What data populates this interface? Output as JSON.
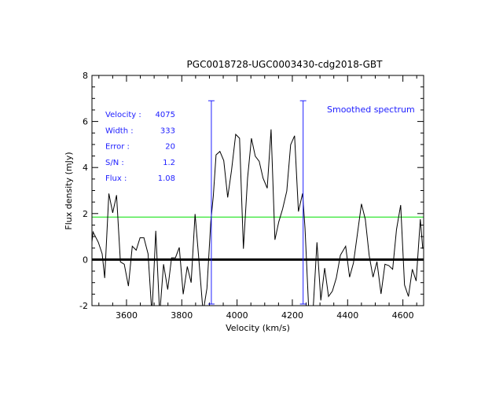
{
  "chart_data": {
    "type": "line",
    "title": "PGC0018728-UGC0003430-cdg2018-GBT",
    "xlabel": "Velocity (km/s)",
    "ylabel": "Flux density (mJy)",
    "xlim": [
      3475,
      4675
    ],
    "ylim": [
      -2,
      8
    ],
    "xticks": [
      3600,
      3800,
      4000,
      4200,
      4400,
      4600
    ],
    "yticks": [
      -2,
      0,
      2,
      4,
      6,
      8
    ],
    "grid": false,
    "legend": "top-right",
    "legend_text": "Smoothed spectrum",
    "series": [
      {
        "name": "Smoothed spectrum",
        "color": "#000000",
        "x": [
          3474,
          3479,
          3498,
          3512,
          3521,
          3536,
          3550,
          3564,
          3578,
          3592,
          3607,
          3621,
          3635,
          3649,
          3663,
          3678,
          3692,
          3706,
          3720,
          3734,
          3749,
          3763,
          3777,
          3791,
          3805,
          3820,
          3834,
          3848,
          3862,
          3877,
          3891,
          3905,
          3914,
          3924,
          3938,
          3952,
          3966,
          3980,
          3995,
          4009,
          4023,
          4038,
          4052,
          4066,
          4080,
          4094,
          4109,
          4123,
          4137,
          4151,
          4165,
          4180,
          4194,
          4208,
          4222,
          4237,
          4246,
          4260,
          4274,
          4289,
          4303,
          4317,
          4331,
          4345,
          4359,
          4374,
          4393,
          4407,
          4421,
          4435,
          4450,
          4464,
          4478,
          4492,
          4506,
          4521,
          4535,
          4549,
          4563,
          4577,
          4592,
          4606,
          4620,
          4634,
          4648,
          4663,
          4672
        ],
        "y": [
          0.64,
          1.2,
          0.75,
          0.25,
          -0.8,
          2.87,
          2.03,
          2.8,
          -0.1,
          -0.2,
          -1.15,
          0.58,
          0.41,
          0.95,
          0.95,
          0.25,
          -2.4,
          1.25,
          -2.4,
          -0.2,
          -1.3,
          0.08,
          0.08,
          0.53,
          -1.5,
          -0.3,
          -1.0,
          1.98,
          -0.03,
          -2.3,
          -1.25,
          1.64,
          2.76,
          4.55,
          4.7,
          4.3,
          2.7,
          3.88,
          5.44,
          5.27,
          0.47,
          3.54,
          5.27,
          4.49,
          4.27,
          3.54,
          3.1,
          5.66,
          0.86,
          1.64,
          2.2,
          2.98,
          4.99,
          5.38,
          2.09,
          2.87,
          1.36,
          -2.4,
          -2.4,
          0.75,
          -1.77,
          -0.37,
          -1.6,
          -1.37,
          -0.8,
          0.19,
          0.58,
          -0.76,
          -0.15,
          1.08,
          2.42,
          1.75,
          0.19,
          -0.76,
          -0.09,
          -1.49,
          -0.2,
          -0.26,
          -0.42,
          1.31,
          2.37,
          -1.1,
          -1.6,
          -0.42,
          -0.93,
          1.75,
          0.47
        ]
      }
    ],
    "reference_lines": {
      "zero": {
        "y": 0,
        "color": "#000000"
      },
      "noise_level": {
        "y": 1.85,
        "color": "#00e000"
      }
    },
    "markers": {
      "color": "#2020ff",
      "x": [
        3907,
        4239
      ],
      "y_range": [
        -1.93,
        6.9
      ]
    },
    "annotations": {
      "color": "#2020ff",
      "rows": [
        {
          "label": "Velocity :",
          "value": "4075"
        },
        {
          "label": "Width :",
          "value": "333"
        },
        {
          "label": "Error :",
          "value": "20"
        },
        {
          "label": "S/N :",
          "value": "1.2"
        },
        {
          "label": "Flux :",
          "value": "1.08"
        }
      ]
    }
  }
}
